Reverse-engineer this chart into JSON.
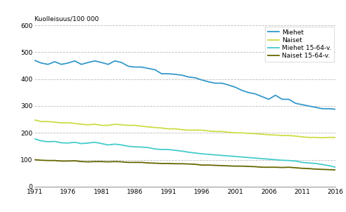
{
  "years": [
    1971,
    1972,
    1973,
    1974,
    1975,
    1976,
    1977,
    1978,
    1979,
    1980,
    1981,
    1982,
    1983,
    1984,
    1985,
    1986,
    1987,
    1988,
    1989,
    1990,
    1991,
    1992,
    1993,
    1994,
    1995,
    1996,
    1997,
    1998,
    1999,
    2000,
    2001,
    2002,
    2003,
    2004,
    2005,
    2006,
    2007,
    2008,
    2009,
    2010,
    2011,
    2012,
    2013,
    2014,
    2015,
    2016
  ],
  "miehet": [
    470,
    460,
    455,
    465,
    455,
    460,
    468,
    455,
    462,
    468,
    462,
    455,
    468,
    462,
    448,
    445,
    445,
    440,
    435,
    420,
    420,
    418,
    415,
    408,
    405,
    397,
    390,
    385,
    385,
    378,
    370,
    358,
    350,
    345,
    335,
    325,
    340,
    325,
    325,
    310,
    305,
    300,
    295,
    290,
    290,
    288
  ],
  "naiset": [
    248,
    242,
    242,
    240,
    237,
    238,
    235,
    232,
    230,
    232,
    228,
    228,
    232,
    230,
    228,
    228,
    225,
    222,
    220,
    218,
    215,
    215,
    212,
    210,
    210,
    210,
    207,
    205,
    205,
    202,
    200,
    200,
    198,
    197,
    195,
    193,
    192,
    190,
    190,
    188,
    185,
    183,
    183,
    182,
    183,
    183
  ],
  "miehet_1564": [
    178,
    170,
    167,
    168,
    163,
    162,
    165,
    160,
    162,
    165,
    160,
    155,
    158,
    155,
    150,
    148,
    147,
    145,
    140,
    138,
    138,
    135,
    132,
    128,
    125,
    122,
    120,
    118,
    116,
    114,
    112,
    110,
    108,
    106,
    104,
    102,
    100,
    98,
    97,
    95,
    90,
    88,
    86,
    82,
    78,
    72
  ],
  "naiset_1564": [
    100,
    98,
    97,
    97,
    95,
    95,
    96,
    93,
    92,
    93,
    93,
    92,
    93,
    92,
    90,
    90,
    90,
    88,
    87,
    86,
    86,
    85,
    85,
    84,
    83,
    80,
    80,
    79,
    78,
    77,
    76,
    76,
    75,
    74,
    72,
    72,
    72,
    71,
    72,
    70,
    68,
    67,
    65,
    64,
    63,
    62
  ],
  "miehet_color": "#3399CC",
  "naiset_color": "#CCDD44",
  "miehet_1564_color": "#44CCCC",
  "naiset_1564_color": "#666600",
  "ylabel": "Kuolleisuus/100 000",
  "ylim": [
    0,
    600
  ],
  "yticks": [
    0,
    100,
    200,
    300,
    400,
    500,
    600
  ],
  "xticks": [
    1971,
    1976,
    1981,
    1986,
    1991,
    1996,
    2001,
    2006,
    2011,
    2016
  ],
  "legend_labels": [
    "Miehet",
    "Naiset",
    "Miehet 15-64-v.",
    "Naiset 15-64-v."
  ],
  "background_color": "#ffffff",
  "grid_color": "#bbbbbb",
  "linewidth": 1.3
}
